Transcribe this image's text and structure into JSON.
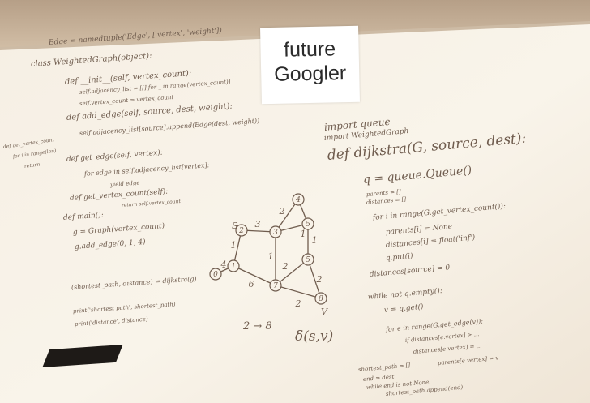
{
  "sticky_note": {
    "line1": "future",
    "line2": "Googler"
  },
  "left_column": [
    "Edge = namedtuple('Edge', ['vertex', 'weight'])",
    "class WeightedGraph(object):",
    "def __init__(self, vertex_count):",
    "self.adjacency_list = [[] for _ in range(vertex_count)]",
    "self.vertex_count = vertex_count",
    "def add_edge(self, source, dest, weight):",
    "self.adjacency_list[source].append(Edge(dest, weight))",
    "def get_edge(self, vertex):",
    "for edge in self.adjacency_list[vertex]:",
    "yield edge",
    "def get_vertex_count(self):",
    "return self.vertex_count",
    "def main():",
    "g = Graph(vertex_count)",
    "g.add_edge(0, 1, 4)",
    "(shortest_path, distance) = dijkstra(g)",
    "print('shortest path', shortest_path)",
    "print('distance', distance)"
  ],
  "margin_note": [
    "def get_vertex_count",
    "for i in range(len)",
    "return"
  ],
  "right_column": [
    "import queue",
    "import WeightedGraph",
    "def dijkstra(G, source, dest):",
    "q = queue.Queue()",
    "parents = []",
    "distances = []",
    "for i in range(G.get_vertex_count()):",
    "parents[i] = None",
    "distances[i] = float('inf')",
    "q.put(i)",
    "distances[source] = 0",
    "while not q.empty():",
    "v = q.get()",
    "for e in range(G.get_edge(v)):",
    "if distances[e.vertex] > ...",
    "distances[e.vertex] = ...",
    "parents[e.vertex] = v",
    "shortest_path = []",
    "end = dest",
    "while end is not None:",
    "shortest_path.append(end)"
  ],
  "graph": {
    "node_labels": [
      "4",
      "3",
      "2",
      "1",
      "5",
      "7",
      "8",
      "0"
    ],
    "edge_labels": [
      "3",
      "2",
      "1",
      "1",
      "1",
      "2",
      "6",
      "4",
      "2",
      "2",
      "1"
    ],
    "corner_labels": [
      "S",
      "V"
    ],
    "caption_left": "2 → 8",
    "caption_right": "δ(s,v)"
  }
}
